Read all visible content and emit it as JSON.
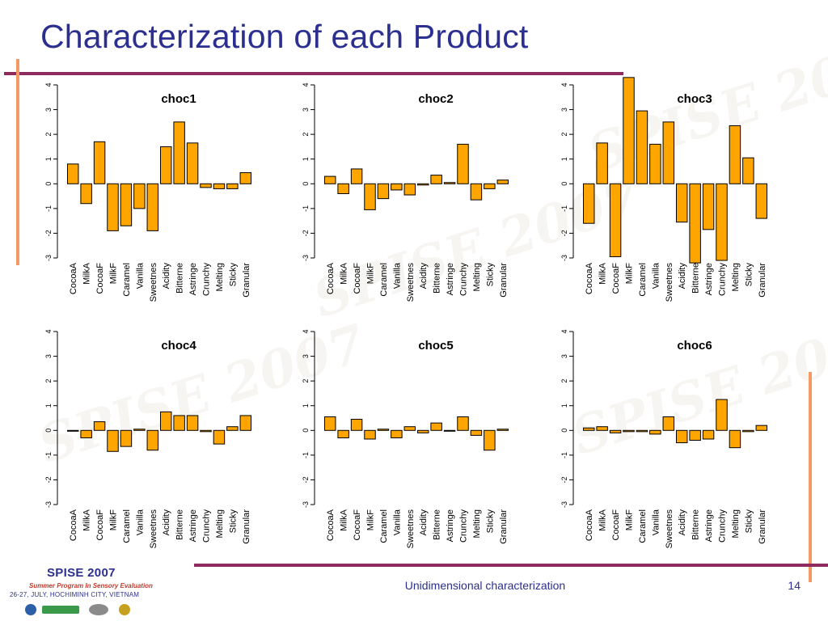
{
  "slide": {
    "title": "Characterization of each Product",
    "footer": "Unidimensional characterization",
    "page_number": "14",
    "logo": {
      "title": "SPISE 2007",
      "subtitle": "Summer Program In Sensory Evaluation",
      "date_location": "26-27, JULY, HOCHIMINH CITY, VIETNAM"
    },
    "watermark": "SPISE 2007"
  },
  "colors": {
    "bar_fill": "#FFA500",
    "bar_stroke": "#000000",
    "title": "#2b2f8f",
    "rule": "#8e2a5e",
    "accent": "#f59a63"
  },
  "chart_data": [
    {
      "type": "bar",
      "title": "choc1",
      "categories": [
        "CocoaA",
        "MilkA",
        "CocoaF",
        "MilkF",
        "Caramel",
        "Vanilla",
        "Sweetnes",
        "Acidity",
        "Bitterne",
        "Astringe",
        "Crunchy",
        "Melting",
        "Sticky",
        "Granular"
      ],
      "values": [
        0.8,
        -0.8,
        1.7,
        -1.9,
        -1.7,
        -1.0,
        -1.9,
        1.5,
        2.5,
        1.65,
        -0.15,
        -0.2,
        -0.2,
        0.45
      ],
      "ylim": [
        -3,
        4
      ],
      "yticks": [
        "-3",
        "-2",
        "-1",
        "0",
        "1",
        "2",
        "3",
        "4"
      ]
    },
    {
      "type": "bar",
      "title": "choc2",
      "categories": [
        "CocoaA",
        "MilkA",
        "CocoaF",
        "MilkF",
        "Caramel",
        "Vanilla",
        "Sweetnes",
        "Acidity",
        "Bitterne",
        "Astringe",
        "Crunchy",
        "Melting",
        "Sticky",
        "Granular"
      ],
      "values": [
        0.3,
        -0.4,
        0.6,
        -1.05,
        -0.6,
        -0.25,
        -0.45,
        -0.05,
        0.35,
        0.05,
        1.6,
        -0.65,
        -0.2,
        0.15
      ],
      "ylim": [
        -3,
        4
      ],
      "yticks": [
        "-3",
        "-2",
        "-1",
        "0",
        "1",
        "2",
        "3",
        "4"
      ]
    },
    {
      "type": "bar",
      "title": "choc3",
      "categories": [
        "CocoaA",
        "MilkA",
        "CocoaF",
        "MilkF",
        "Caramel",
        "Vanilla",
        "Sweetnes",
        "Acidity",
        "Bitterne",
        "Astringe",
        "Crunchy",
        "Melting",
        "Sticky",
        "Granular"
      ],
      "values": [
        -1.6,
        1.65,
        -2.95,
        4.3,
        2.95,
        1.6,
        2.5,
        -1.55,
        -3.2,
        -1.85,
        -3.1,
        2.35,
        1.05,
        -1.4
      ],
      "ylim": [
        -3,
        4
      ],
      "yticks": [
        "-3",
        "-2",
        "-1",
        "0",
        "1",
        "2",
        "3",
        "4"
      ]
    },
    {
      "type": "bar",
      "title": "choc4",
      "categories": [
        "CocoaA",
        "MilkA",
        "CocoaF",
        "MilkF",
        "Caramel",
        "Vanilla",
        "Sweetnes",
        "Acidity",
        "Bitterne",
        "Astringe",
        "Crunchy",
        "Melting",
        "Sticky",
        "Granular"
      ],
      "values": [
        -0.03,
        -0.3,
        0.35,
        -0.85,
        -0.65,
        0.05,
        -0.8,
        0.75,
        0.6,
        0.6,
        -0.05,
        -0.55,
        0.15,
        0.6
      ],
      "ylim": [
        -3,
        4
      ],
      "yticks": [
        "-3",
        "-2",
        "-1",
        "0",
        "1",
        "2",
        "3",
        "4"
      ]
    },
    {
      "type": "bar",
      "title": "choc5",
      "categories": [
        "CocoaA",
        "MilkA",
        "CocoaF",
        "MilkF",
        "Caramel",
        "Vanilla",
        "Sweetnes",
        "Acidity",
        "Bitterne",
        "Astringe",
        "Crunchy",
        "Melting",
        "Sticky",
        "Granular"
      ],
      "values": [
        0.55,
        -0.3,
        0.45,
        -0.35,
        0.05,
        -0.3,
        0.15,
        -0.1,
        0.3,
        0.0,
        0.55,
        -0.2,
        -0.8,
        0.05
      ],
      "ylim": [
        -3,
        4
      ],
      "yticks": [
        "-3",
        "-2",
        "-1",
        "0",
        "1",
        "2",
        "3",
        "4"
      ]
    },
    {
      "type": "bar",
      "title": "choc6",
      "categories": [
        "CocoaA",
        "MilkA",
        "CocoaF",
        "MilkF",
        "Caramel",
        "Vanilla",
        "Sweetnes",
        "Acidity",
        "Bitterne",
        "Astringe",
        "Crunchy",
        "Melting",
        "Sticky",
        "Granular"
      ],
      "values": [
        0.1,
        0.15,
        -0.1,
        -0.05,
        -0.05,
        -0.15,
        0.55,
        -0.5,
        -0.4,
        -0.35,
        1.25,
        -0.7,
        -0.05,
        0.2
      ],
      "ylim": [
        -3,
        4
      ],
      "yticks": [
        "-3",
        "-2",
        "-1",
        "0",
        "1",
        "2",
        "3",
        "4"
      ]
    }
  ]
}
